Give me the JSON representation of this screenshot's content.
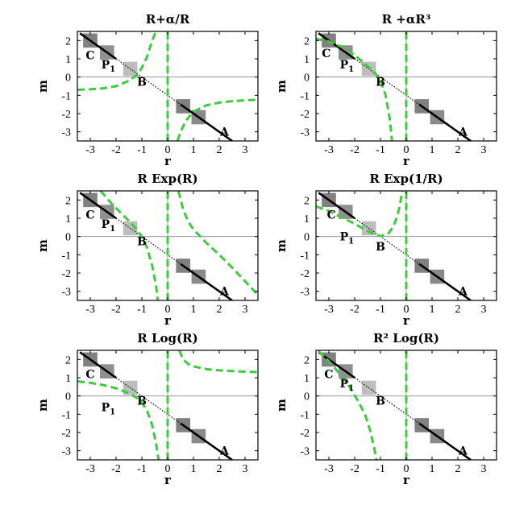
{
  "chart_data": [
    {
      "type": "line",
      "title": "R+α/R",
      "xlabel": "r",
      "ylabel": "m",
      "xlim": [
        -3.5,
        3.5
      ],
      "ylim": [
        -3.5,
        2.5
      ],
      "xticks": [
        "-3",
        "-2",
        "-1",
        "0",
        "1",
        "2",
        "3"
      ],
      "yticks": [
        "-3",
        "-2",
        "-1",
        "0",
        "1",
        "2"
      ],
      "grid": false,
      "points": [
        {
          "label": "C",
          "x": -3.0,
          "y": 1.2
        },
        {
          "label": "P",
          "sub": "1",
          "x": -2.3,
          "y": 0.7
        },
        {
          "label": "B",
          "x": -1.0,
          "y": -0.25
        },
        {
          "label": "A",
          "x": 2.2,
          "y": -3.0
        }
      ],
      "series": [
        {
          "style": "black-solid",
          "x": [
            -3.4,
            -2.0
          ],
          "y": [
            2.4,
            1.0
          ]
        },
        {
          "style": "black-dotted",
          "x": [
            -2.0,
            0.5
          ],
          "y": [
            1.0,
            -1.5
          ]
        },
        {
          "style": "black-solid",
          "x": [
            0.5,
            2.5
          ],
          "y": [
            -1.5,
            -3.5
          ]
        },
        {
          "style": "green-dashed",
          "x": [
            -3.5,
            -3.0,
            -2.5,
            -2.0,
            -1.5,
            -1.2,
            -1.0,
            -0.8,
            -0.6,
            -0.45
          ],
          "y": [
            -0.7,
            -0.67,
            -0.62,
            -0.5,
            -0.2,
            0.1,
            0.5,
            1.1,
            2.0,
            2.5
          ]
        },
        {
          "style": "green-dashed",
          "x": [
            0.0,
            0.0
          ],
          "y": [
            -3.5,
            2.5
          ]
        },
        {
          "style": "green-dashed",
          "x": [
            0.38,
            0.5,
            0.7,
            1.0,
            1.5,
            2.0,
            2.5,
            3.0,
            3.5
          ],
          "y": [
            -3.5,
            -3.0,
            -2.4,
            -1.9,
            -1.55,
            -1.4,
            -1.32,
            -1.27,
            -1.24
          ]
        }
      ]
    },
    {
      "type": "line",
      "title": "R +αR³",
      "xlabel": "r",
      "ylabel": "m",
      "xlim": [
        -3.5,
        3.5
      ],
      "ylim": [
        -3.5,
        2.5
      ],
      "xticks": [
        "-3",
        "-2",
        "-1",
        "0",
        "1",
        "2",
        "3"
      ],
      "yticks": [
        "-3",
        "-2",
        "-1",
        "0",
        "1",
        "2"
      ],
      "grid": false,
      "points": [
        {
          "label": "C",
          "x": -3.1,
          "y": 1.3
        },
        {
          "label": "P",
          "sub": "1",
          "x": -2.3,
          "y": 0.7
        },
        {
          "label": "B",
          "x": -1.0,
          "y": -0.25
        },
        {
          "label": "A",
          "x": 2.2,
          "y": -3.0
        }
      ],
      "series": [
        {
          "style": "black-solid",
          "x": [
            -3.4,
            -2.0
          ],
          "y": [
            2.4,
            1.0
          ]
        },
        {
          "style": "black-dotted",
          "x": [
            -2.0,
            0.5
          ],
          "y": [
            1.0,
            -1.5
          ]
        },
        {
          "style": "black-solid",
          "x": [
            0.5,
            2.5
          ],
          "y": [
            -1.5,
            -3.5
          ]
        },
        {
          "style": "green-dashed",
          "x": [
            -3.5,
            -3.0,
            -2.5,
            -2.0,
            -1.5,
            -1.2,
            -1.0,
            -0.8,
            -0.65,
            -0.55
          ],
          "y": [
            2.1,
            1.95,
            1.65,
            1.2,
            0.6,
            0.2,
            -0.2,
            -1.0,
            -2.2,
            -3.5
          ]
        },
        {
          "style": "green-dashed",
          "x": [
            0.0,
            0.0
          ],
          "y": [
            -3.5,
            2.5
          ]
        }
      ]
    },
    {
      "type": "line",
      "title": "R Exp(R)",
      "xlabel": "r",
      "ylabel": "m",
      "xlim": [
        -3.5,
        3.5
      ],
      "ylim": [
        -3.5,
        2.5
      ],
      "xticks": [
        "-3",
        "-2",
        "-1",
        "0",
        "1",
        "2",
        "3"
      ],
      "yticks": [
        "-3",
        "-2",
        "-1",
        "0",
        "1",
        "2"
      ],
      "grid": false,
      "points": [
        {
          "label": "C",
          "x": -3.0,
          "y": 1.2
        },
        {
          "label": "P",
          "sub": "1",
          "x": -2.3,
          "y": 0.7
        },
        {
          "label": "B",
          "x": -1.0,
          "y": -0.25
        },
        {
          "label": "A",
          "x": 2.2,
          "y": -3.0
        }
      ],
      "series": [
        {
          "style": "black-solid",
          "x": [
            -3.4,
            -2.0
          ],
          "y": [
            2.4,
            1.0
          ]
        },
        {
          "style": "black-dotted",
          "x": [
            -2.0,
            0.5
          ],
          "y": [
            1.0,
            -1.5
          ]
        },
        {
          "style": "black-solid",
          "x": [
            0.5,
            2.5
          ],
          "y": [
            -1.5,
            -3.5
          ]
        },
        {
          "style": "green-dashed",
          "x": [
            -2.6,
            -2.3,
            -2.0,
            -1.6,
            -1.3,
            -1.0,
            -0.8,
            -0.6,
            -0.45,
            -0.38
          ],
          "y": [
            2.5,
            2.0,
            1.55,
            1.0,
            0.55,
            0.0,
            -0.6,
            -1.6,
            -2.7,
            -3.5
          ]
        },
        {
          "style": "green-dashed",
          "x": [
            0.0,
            0.0
          ],
          "y": [
            -3.5,
            2.5
          ]
        },
        {
          "style": "green-dashed",
          "x": [
            0.42,
            0.6,
            0.8,
            1.0,
            1.5,
            2.0,
            2.5,
            3.0,
            3.5
          ],
          "y": [
            2.5,
            1.5,
            0.8,
            0.4,
            -0.35,
            -1.0,
            -1.7,
            -2.45,
            -3.2
          ]
        }
      ]
    },
    {
      "type": "line",
      "title": "R Exp(1/R)",
      "xlabel": "r",
      "ylabel": "m",
      "xlim": [
        -3.5,
        3.5
      ],
      "ylim": [
        -3.5,
        2.5
      ],
      "xticks": [
        "-3",
        "-2",
        "-1",
        "0",
        "1",
        "2",
        "3"
      ],
      "yticks": [
        "-3",
        "-2",
        "-1",
        "0",
        "1",
        "2"
      ],
      "grid": false,
      "points": [
        {
          "label": "C",
          "x": -2.9,
          "y": 1.2
        },
        {
          "label": "P",
          "sub": "1",
          "x": -2.3,
          "y": 0.0
        },
        {
          "label": "B",
          "x": -1.0,
          "y": -0.55
        },
        {
          "label": "A",
          "x": 2.2,
          "y": -3.0
        }
      ],
      "series": [
        {
          "style": "black-solid",
          "x": [
            -3.4,
            -2.0
          ],
          "y": [
            2.4,
            1.0
          ]
        },
        {
          "style": "black-dotted",
          "x": [
            -2.0,
            0.5
          ],
          "y": [
            1.0,
            -1.5
          ]
        },
        {
          "style": "black-solid",
          "x": [
            0.5,
            2.5
          ],
          "y": [
            -1.5,
            -3.5
          ]
        },
        {
          "style": "green-dashed",
          "x": [
            -3.5,
            -3.0,
            -2.5,
            -2.0,
            -1.5,
            -1.2,
            -1.0,
            -0.7,
            -0.5,
            -0.35,
            -0.25,
            -0.15
          ],
          "y": [
            1.65,
            1.4,
            1.05,
            0.7,
            0.3,
            0.1,
            0.02,
            0.15,
            0.55,
            1.1,
            1.7,
            2.5
          ]
        },
        {
          "style": "green-dashed",
          "x": [
            0.0,
            0.0
          ],
          "y": [
            -3.5,
            2.5
          ]
        }
      ]
    },
    {
      "type": "line",
      "title": "R Log(R)",
      "xlabel": "r",
      "ylabel": "m",
      "xlim": [
        -3.5,
        3.5
      ],
      "ylim": [
        -3.5,
        2.5
      ],
      "xticks": [
        "-3",
        "-2",
        "-1",
        "0",
        "1",
        "2",
        "3"
      ],
      "yticks": [
        "-3",
        "-2",
        "-1",
        "0",
        "1",
        "2"
      ],
      "grid": false,
      "points": [
        {
          "label": "C",
          "x": -3.0,
          "y": 1.2
        },
        {
          "label": "P",
          "sub": "1",
          "x": -2.3,
          "y": -0.6
        },
        {
          "label": "B",
          "x": -1.0,
          "y": -0.25
        },
        {
          "label": "A",
          "x": 2.2,
          "y": -3.0
        }
      ],
      "series": [
        {
          "style": "black-solid",
          "x": [
            -3.4,
            -2.0
          ],
          "y": [
            2.4,
            1.0
          ]
        },
        {
          "style": "black-dotted",
          "x": [
            -2.0,
            0.5
          ],
          "y": [
            1.0,
            -1.5
          ]
        },
        {
          "style": "black-solid",
          "x": [
            0.5,
            2.5
          ],
          "y": [
            -1.5,
            -3.5
          ]
        },
        {
          "style": "green-dashed",
          "x": [
            -3.5,
            -3.0,
            -2.5,
            -2.0,
            -1.5,
            -1.2,
            -1.0,
            -0.8,
            -0.6,
            -0.45,
            -0.35
          ],
          "y": [
            0.8,
            0.72,
            0.6,
            0.42,
            0.15,
            -0.1,
            -0.35,
            -0.8,
            -1.6,
            -2.6,
            -3.5
          ]
        },
        {
          "style": "green-dashed",
          "x": [
            0.0,
            0.0
          ],
          "y": [
            -3.5,
            2.5
          ]
        },
        {
          "style": "green-dashed",
          "x": [
            0.45,
            0.6,
            0.8,
            1.0,
            1.5,
            2.0,
            2.5,
            3.0,
            3.5
          ],
          "y": [
            2.5,
            2.0,
            1.75,
            1.62,
            1.47,
            1.4,
            1.36,
            1.33,
            1.31
          ]
        }
      ]
    },
    {
      "type": "line",
      "title": "R² Log(R)",
      "xlabel": "r",
      "ylabel": "m",
      "xlim": [
        -3.5,
        3.5
      ],
      "ylim": [
        -3.5,
        2.5
      ],
      "xticks": [
        "-3",
        "-2",
        "-1",
        "0",
        "1",
        "2",
        "3"
      ],
      "yticks": [
        "-3",
        "-2",
        "-1",
        "0",
        "1",
        "2"
      ],
      "grid": false,
      "points": [
        {
          "label": "C",
          "x": -3.0,
          "y": 1.2
        },
        {
          "label": "P",
          "sub": "1",
          "x": -2.3,
          "y": 0.7
        },
        {
          "label": "B",
          "x": -1.0,
          "y": -0.25
        },
        {
          "label": "A",
          "x": 2.2,
          "y": -3.0
        }
      ],
      "series": [
        {
          "style": "black-solid",
          "x": [
            -3.4,
            -2.0
          ],
          "y": [
            2.4,
            1.0
          ]
        },
        {
          "style": "black-dotted",
          "x": [
            -2.0,
            0.5
          ],
          "y": [
            1.0,
            -1.5
          ]
        },
        {
          "style": "black-solid",
          "x": [
            0.5,
            2.5
          ],
          "y": [
            -1.5,
            -3.5
          ]
        },
        {
          "style": "green-dashed",
          "x": [
            -3.4,
            -3.0,
            -2.6,
            -2.2,
            -1.9,
            -1.6,
            -1.4,
            -1.25,
            -1.15
          ],
          "y": [
            2.45,
            1.9,
            1.25,
            0.5,
            -0.2,
            -1.0,
            -1.9,
            -2.8,
            -3.5
          ]
        },
        {
          "style": "green-dashed",
          "x": [
            0.0,
            0.0
          ],
          "y": [
            -3.5,
            2.5
          ]
        }
      ]
    }
  ]
}
